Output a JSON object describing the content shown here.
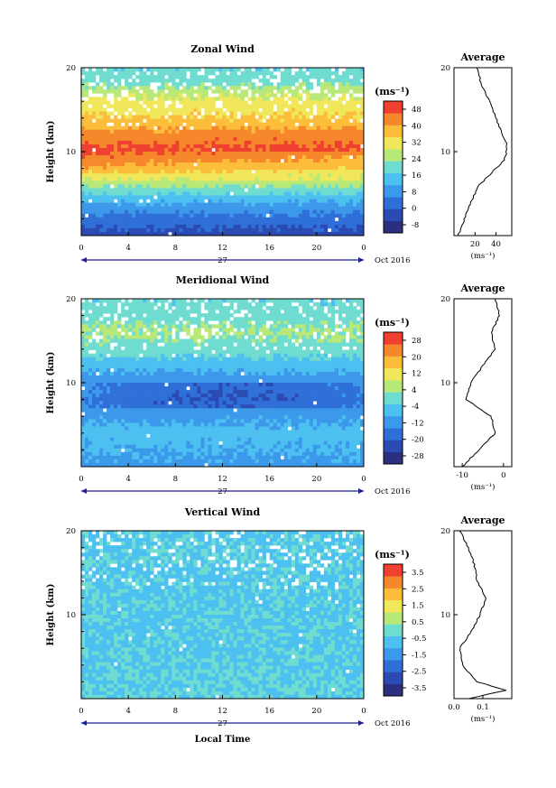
{
  "colors": {
    "scale": [
      "#2a2f7f",
      "#2b4bb3",
      "#2f6fd8",
      "#3c98ea",
      "#4cc0f0",
      "#6fdcd0",
      "#b8e878",
      "#f0e85a",
      "#fbbd3a",
      "#f6872a",
      "#ef4030"
    ]
  },
  "panels": [
    {
      "title": "Zonal Wind",
      "avg_title": "Average",
      "ylabel": "Height (km)",
      "yticks": [
        "20",
        "10"
      ],
      "xticks": [
        "0",
        "4",
        "8",
        "12",
        "16",
        "20",
        "0"
      ],
      "date_day": "27",
      "date_right": "Oct 2016",
      "unit": "(ms⁻¹)",
      "cbar_labels": [
        "48",
        "40",
        "32",
        "24",
        "16",
        "8",
        "0",
        "-8"
      ],
      "avg_xticks": [
        "20",
        "40"
      ],
      "avg_xunit": "(ms⁻¹)"
    },
    {
      "title": "Meridional Wind",
      "avg_title": "Average",
      "ylabel": "Height (km)",
      "yticks": [
        "20",
        "10"
      ],
      "xticks": [
        "0",
        "4",
        "8",
        "12",
        "16",
        "20",
        "0"
      ],
      "date_day": "27",
      "date_right": "Oct 2016",
      "unit": "(ms⁻¹)",
      "cbar_labels": [
        "28",
        "20",
        "12",
        "4",
        "-4",
        "-12",
        "-20",
        "-28"
      ],
      "avg_xticks": [
        "-10",
        "0"
      ],
      "avg_xunit": "(ms⁻¹)"
    },
    {
      "title": "Vertical Wind",
      "avg_title": "Average",
      "ylabel": "Height (km)",
      "yticks": [
        "20",
        "10"
      ],
      "xticks": [
        "0",
        "4",
        "8",
        "12",
        "16",
        "20",
        "0"
      ],
      "date_day": "27",
      "date_right": "Oct 2016",
      "unit": "(ms⁻¹)",
      "cbar_labels": [
        "3.5",
        "2.5",
        "1.5",
        "0.5",
        "-0.5",
        "-1.5",
        "-2.5",
        "-3.5"
      ],
      "avg_xticks": [
        "0.0",
        "0.1"
      ],
      "avg_xunit": "(ms⁻¹)"
    }
  ],
  "xlabel": "Local Time",
  "chart_data": [
    {
      "type": "heatmap",
      "title": "Zonal Wind",
      "xlabel": "",
      "ylabel": "Height (km)",
      "x_range": [
        0,
        24
      ],
      "y_range": [
        0,
        20
      ],
      "colorbar_range": [
        -8,
        52
      ],
      "z_by_height": {
        "heights": [
          0,
          2,
          4,
          6,
          8,
          10,
          12,
          14,
          16,
          18,
          20
        ],
        "values": [
          0,
          6,
          14,
          26,
          40,
          48,
          44,
          36,
          32,
          24,
          20
        ]
      },
      "average_profile": {
        "x_range": [
          0,
          55
        ],
        "heights": [
          0,
          2,
          4,
          6,
          8,
          9,
          10,
          11,
          12,
          14,
          16,
          18,
          20
        ],
        "values": [
          4,
          10,
          16,
          24,
          40,
          48,
          50,
          50,
          46,
          40,
          34,
          26,
          22
        ]
      }
    },
    {
      "type": "heatmap",
      "title": "Meridional Wind",
      "xlabel": "",
      "ylabel": "Height (km)",
      "x_range": [
        0,
        24
      ],
      "y_range": [
        0,
        20
      ],
      "colorbar_range": [
        -28,
        32
      ],
      "z_by_height": {
        "heights": [
          0,
          2,
          4,
          6,
          8,
          10,
          12,
          14,
          16,
          18,
          20
        ],
        "values": [
          -8,
          -6,
          -4,
          -8,
          -12,
          -10,
          -4,
          2,
          6,
          2,
          0
        ]
      },
      "average_profile": {
        "x_range": [
          -12,
          2
        ],
        "heights": [
          0,
          2,
          4,
          6,
          8,
          10,
          12,
          14,
          16,
          18,
          20
        ],
        "values": [
          -10,
          -6,
          -2,
          -3,
          -9,
          -8,
          -5,
          -2,
          -3,
          -1,
          -2
        ]
      }
    },
    {
      "type": "heatmap",
      "title": "Vertical Wind",
      "xlabel": "Local Time",
      "ylabel": "Height (km)",
      "x_range": [
        0,
        24
      ],
      "y_range": [
        0,
        20
      ],
      "colorbar_range": [
        -3.5,
        4.5
      ],
      "z_by_height": {
        "heights": [
          0,
          5,
          10,
          15,
          20
        ],
        "values": [
          0.2,
          0,
          0,
          0,
          0
        ]
      },
      "average_profile": {
        "x_range": [
          0,
          0.2
        ],
        "heights": [
          0,
          1,
          2,
          4,
          6,
          8,
          10,
          12,
          14,
          16,
          18,
          20
        ],
        "values": [
          0.05,
          0.18,
          0.08,
          0.03,
          0.02,
          0.06,
          0.09,
          0.11,
          0.08,
          0.07,
          0.05,
          0.02
        ]
      }
    }
  ]
}
